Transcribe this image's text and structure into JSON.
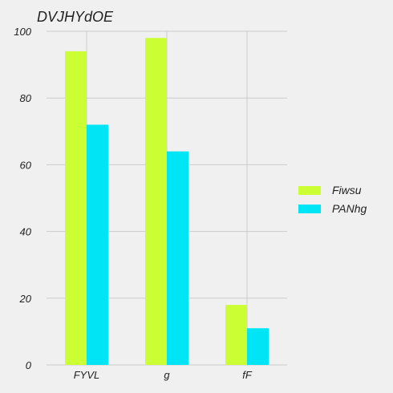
{
  "chart_data": {
    "type": "bar",
    "title": "DVJHYdOE",
    "categories": [
      "FYVL",
      "g",
      "fF"
    ],
    "series": [
      {
        "name": "Fiwsu",
        "values": [
          94,
          98,
          18
        ],
        "color": "#ccff33"
      },
      {
        "name": "PANhg",
        "values": [
          72,
          64,
          11
        ],
        "color": "#00e5f5"
      }
    ],
    "ylim": [
      0,
      100
    ],
    "yticks": [
      0,
      20,
      40,
      60,
      80,
      100
    ],
    "xlabel": "",
    "ylabel": "",
    "grid": true,
    "legend_position": "right",
    "background_color": "#f0f0f0",
    "grid_color": "#cbcbcb"
  }
}
